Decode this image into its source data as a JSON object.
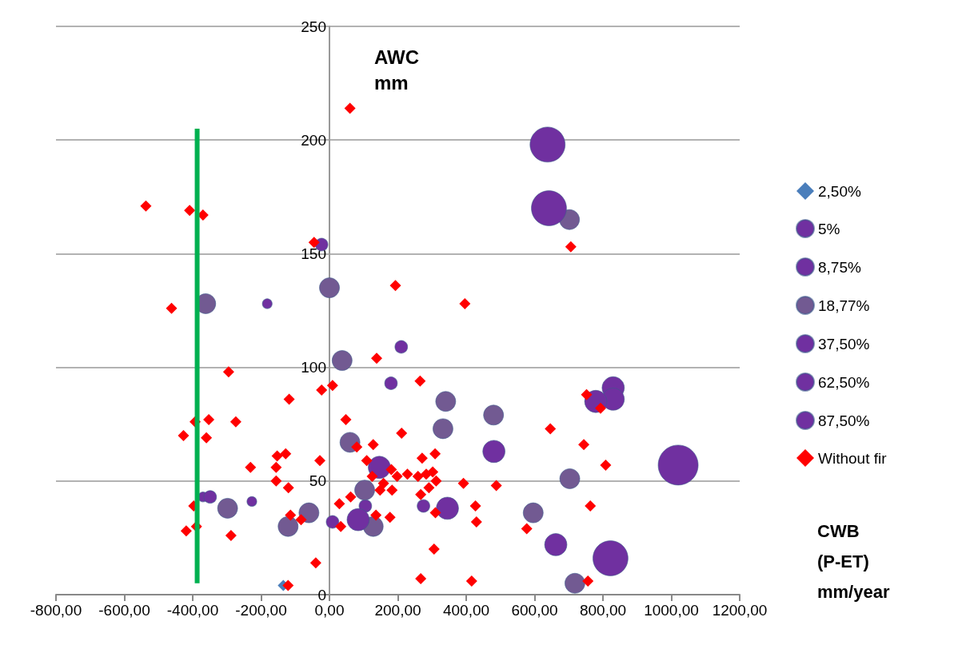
{
  "chart_data": {
    "type": "bubble",
    "xlabel": "CWB\n(P-ET)\nmm/year",
    "ylabel": "AWC\nmm",
    "xlim": [
      -800,
      1200
    ],
    "xticks": [
      {
        "value": -800,
        "label": "-800,00"
      },
      {
        "value": -600,
        "label": "-600,00"
      },
      {
        "value": -400,
        "label": "-400,00"
      },
      {
        "value": -200,
        "label": "-200,00"
      },
      {
        "value": 0,
        "label": "0,00"
      },
      {
        "value": 200,
        "label": "200,00"
      },
      {
        "value": 400,
        "label": "400,00"
      },
      {
        "value": 600,
        "label": "600,00"
      },
      {
        "value": 800,
        "label": "800,00"
      },
      {
        "value": 1000,
        "label": "1000,00"
      },
      {
        "value": 1200,
        "label": "1200,00"
      }
    ],
    "ylim": [
      0,
      250
    ],
    "yticks": [
      0,
      50,
      100,
      150,
      200,
      250
    ],
    "grid": "y",
    "legend": "right",
    "series": [
      {
        "name": "2,50%",
        "type": "scatter",
        "marker": "diamond",
        "color": "#4a7ebb",
        "x": [
          -135
        ],
        "values": [
          4
        ]
      },
      {
        "name": "5%",
        "color": "#7030a0",
        "x": [
          -182,
          -227,
          -370
        ],
        "values": [
          128,
          41,
          43
        ],
        "sizes": [
          0.06,
          0.06,
          0.06
        ]
      },
      {
        "name": "8,75%",
        "color": "#7030a0",
        "x": [
          -23,
          210,
          180,
          105,
          9,
          275,
          -349
        ],
        "values": [
          154,
          109,
          93,
          39,
          32,
          39,
          43
        ],
        "sizes": [
          0.1,
          0.1,
          0.1,
          0.1,
          0.1,
          0.1,
          0.1
        ]
      },
      {
        "name": "18,77%",
        "color": "#725a92",
        "x": [
          -362,
          0,
          37,
          -298,
          -60,
          -121,
          60,
          103,
          128,
          340,
          480,
          332,
          703,
          596,
          718,
          702
        ],
        "values": [
          128,
          135,
          103,
          38,
          36,
          30,
          67,
          46,
          30,
          85,
          79,
          73,
          51,
          36,
          5,
          165
        ],
        "sizes": [
          0.25,
          0.25,
          0.25,
          0.25,
          0.25,
          0.25,
          0.25,
          0.25,
          0.25,
          0.25,
          0.25,
          0.25,
          0.25,
          0.25,
          0.25,
          0.25
        ]
      },
      {
        "name": "37,50%",
        "color": "#7030a0",
        "x": [
          84,
          146,
          830,
          830,
          779,
          481,
          345,
          662
        ],
        "values": [
          33,
          56,
          91,
          86,
          85,
          63,
          38,
          22
        ],
        "sizes": [
          0.31,
          0.31,
          0.31,
          0.31,
          0.31,
          0.31,
          0.31,
          0.31
        ]
      },
      {
        "name": "62,50%",
        "color": "#7030a0",
        "x": [
          638,
          642,
          822
        ],
        "values": [
          198,
          170,
          16
        ],
        "sizes": [
          0.77,
          0.77,
          0.77
        ]
      },
      {
        "name": "87,50%",
        "color": "#7030a0",
        "x": [
          1020
        ],
        "values": [
          57
        ],
        "sizes": [
          1
        ]
      },
      {
        "name": "Without fir",
        "type": "scatter",
        "marker": "diamond",
        "color": "#ff0000",
        "x": [
          -537,
          -409,
          -370,
          -45,
          -462,
          60,
          138,
          -295,
          -23,
          9,
          -118,
          48,
          -393,
          -353,
          -274,
          -427,
          -360,
          -153,
          -128,
          -231,
          -156,
          -28,
          -156,
          -120,
          80,
          128,
          109,
          125,
          -397,
          -389,
          -419,
          -288,
          -114,
          -83,
          29,
          62,
          33,
          -40,
          -121,
          706,
          193,
          396,
          265,
          211,
          646,
          744,
          808,
          752,
          793,
          309,
          271,
          181,
          198,
          228,
          259,
          283,
          302,
          312,
          392,
          488,
          158,
          148,
          183,
          291,
          267,
          136,
          177,
          310,
          427,
          430,
          763,
          577,
          306,
          267,
          416,
          756
        ],
        "values": [
          171,
          169,
          167,
          155,
          126,
          214,
          104,
          98,
          90,
          92,
          86,
          77,
          76,
          77,
          76,
          70,
          69,
          61,
          62,
          56,
          56,
          59,
          50,
          47,
          65,
          66,
          59,
          52,
          39,
          30,
          28,
          26,
          35,
          33,
          40,
          43,
          30,
          14,
          4,
          153,
          136,
          128,
          94,
          71,
          73,
          66,
          57,
          88,
          82,
          62,
          60,
          55,
          52,
          53,
          52,
          53,
          54,
          50,
          49,
          48,
          49,
          46,
          46,
          47,
          44,
          35,
          34,
          36,
          39,
          32,
          39,
          29,
          20,
          7,
          6,
          6
        ]
      },
      {
        "type": "line",
        "color": "#00b050",
        "x": [
          -387,
          -387
        ],
        "values": [
          5,
          205
        ]
      }
    ]
  }
}
